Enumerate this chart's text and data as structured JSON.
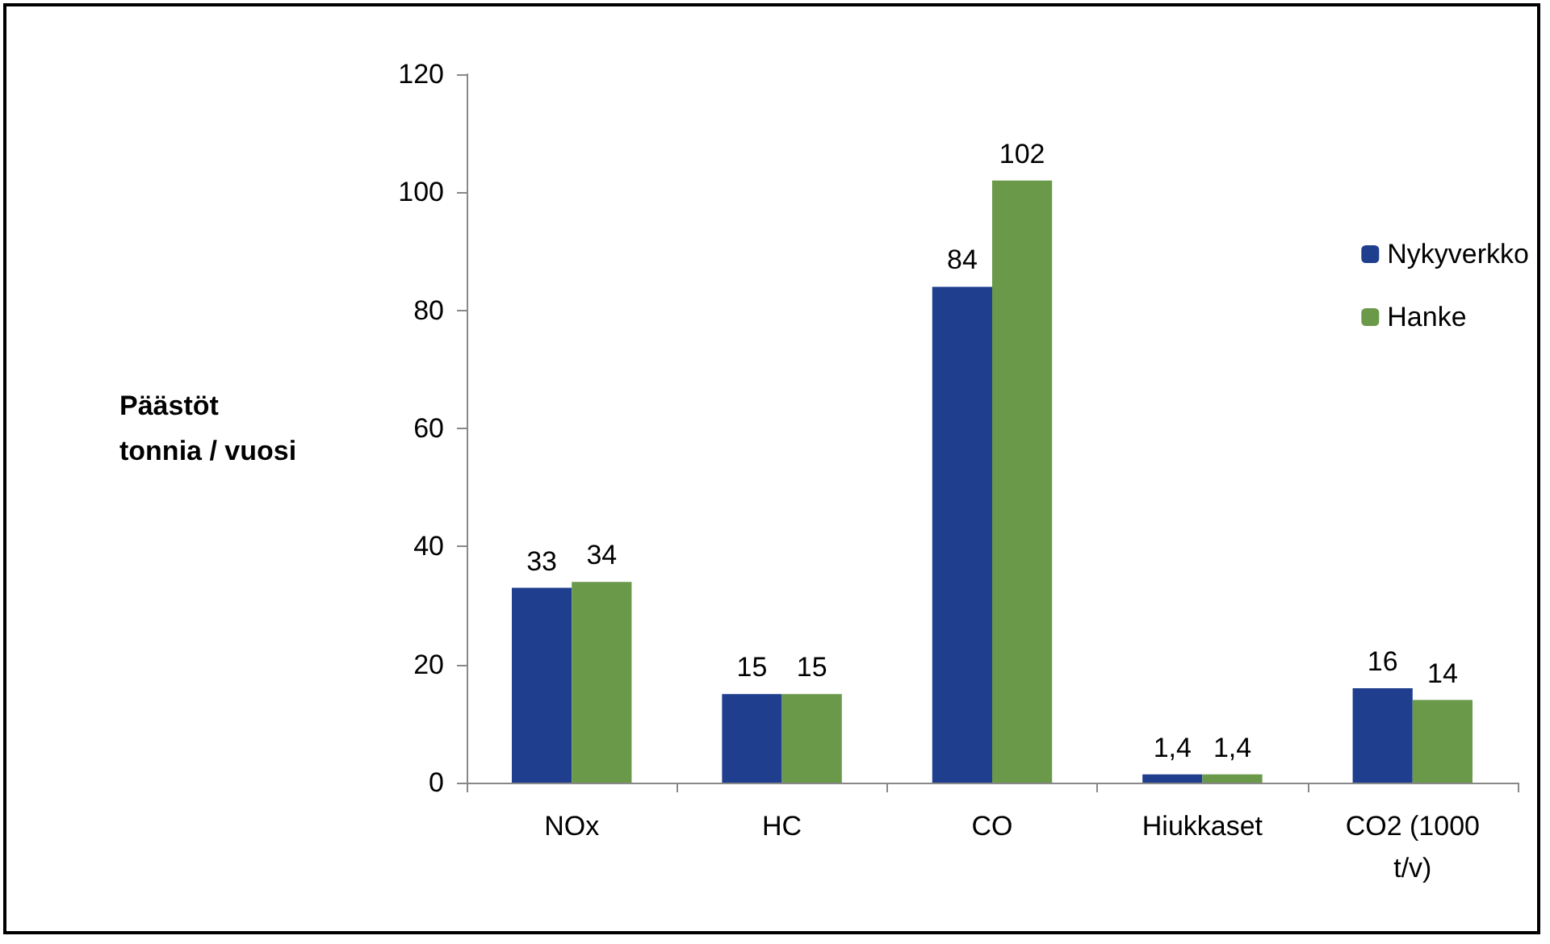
{
  "chart_data": {
    "type": "bar",
    "ylabel": "Päästöt\ntonnia / vuosi",
    "categories": [
      "NOx",
      "HC",
      "CO",
      "Hiukkaset",
      "CO2 (1000\nt/v)"
    ],
    "series": [
      {
        "name": "Nykyverkko",
        "color": "#1f3e8e",
        "values": [
          33,
          15,
          84,
          1.4,
          16
        ],
        "value_labels": [
          "33",
          "15",
          "84",
          "1,4",
          "16"
        ]
      },
      {
        "name": "Hanke",
        "color": "#6a994a",
        "values": [
          34,
          15,
          102,
          1.4,
          14
        ],
        "value_labels": [
          "34",
          "15",
          "102",
          "1,4",
          "14"
        ]
      }
    ],
    "ylim": [
      0,
      120
    ],
    "yticks": [
      0,
      20,
      40,
      60,
      80,
      100,
      120
    ],
    "grid": false,
    "legend": "top right"
  }
}
